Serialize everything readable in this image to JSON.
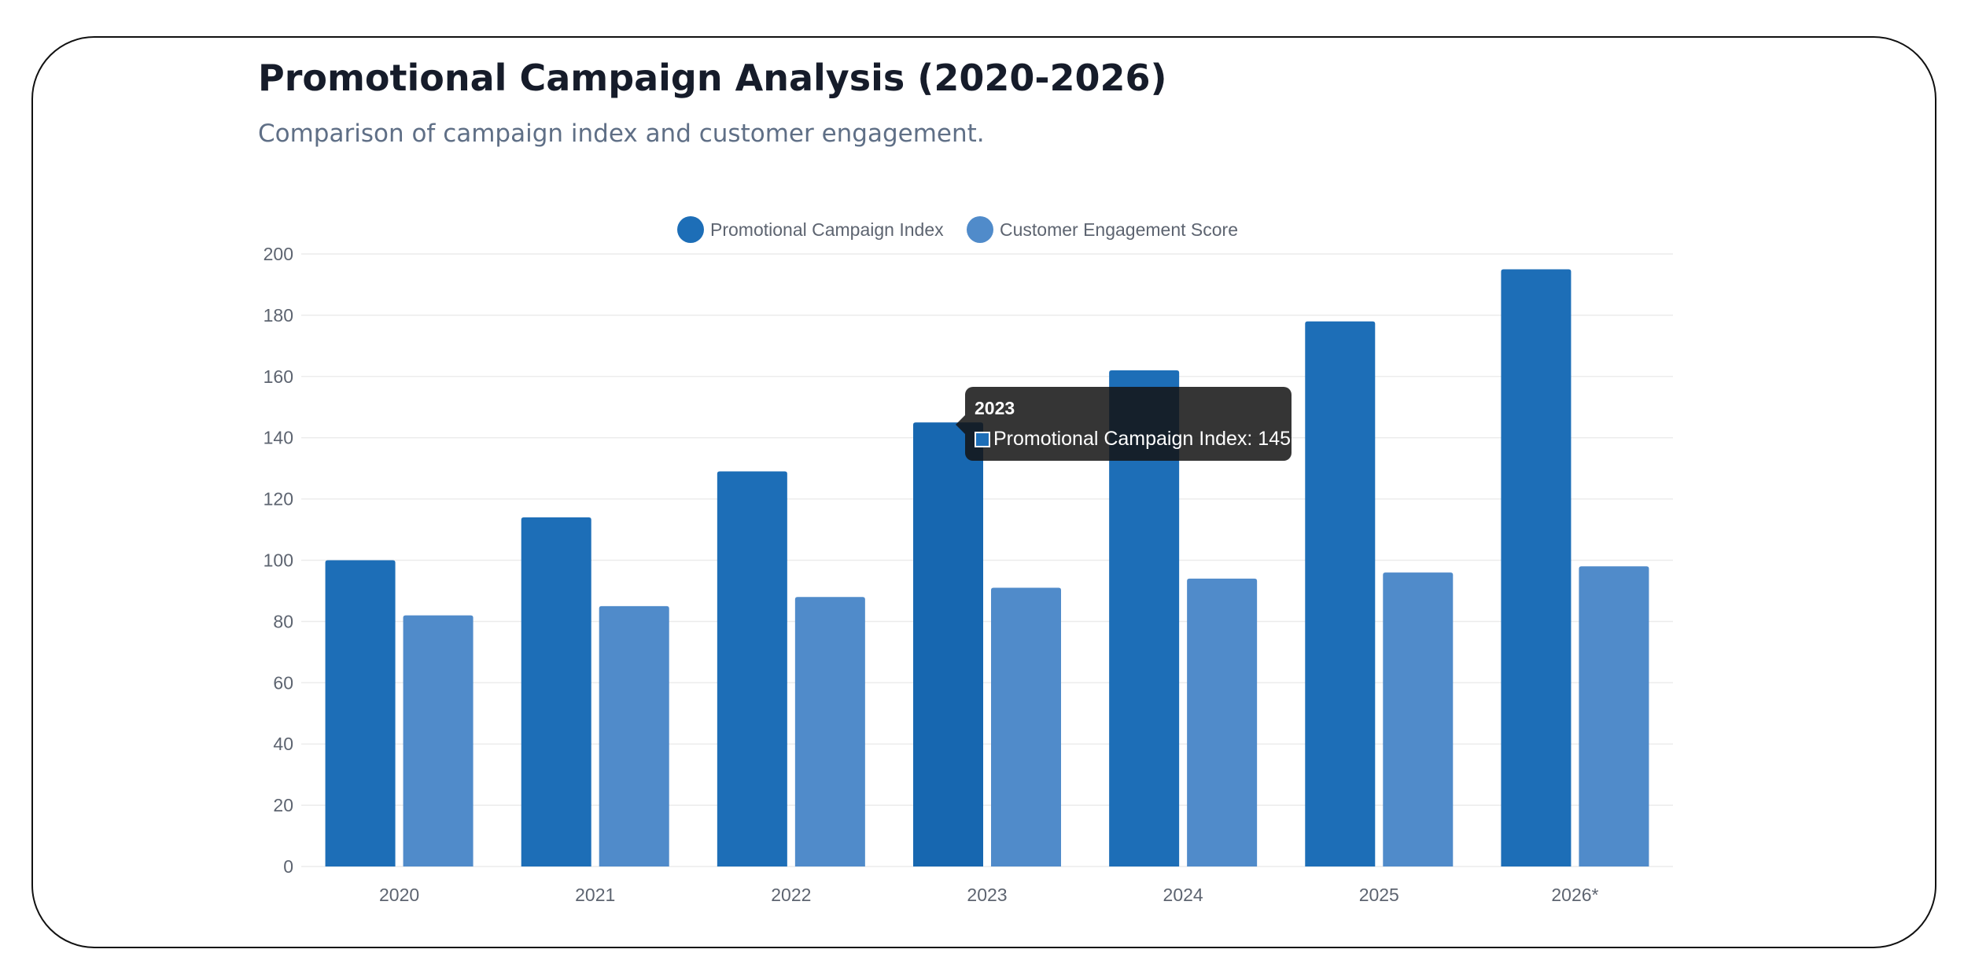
{
  "header": {
    "title": "Promotional Campaign Analysis (2020-2026)",
    "subtitle": "Comparison of campaign index and customer engagement."
  },
  "chart_data": {
    "type": "bar",
    "categories": [
      "2020",
      "2021",
      "2022",
      "2023",
      "2024",
      "2025",
      "2026*"
    ],
    "series": [
      {
        "name": "Promotional Campaign Index",
        "color": "#1d6eb7",
        "values": [
          100,
          114,
          129,
          145,
          162,
          178,
          195
        ]
      },
      {
        "name": "Customer Engagement Score",
        "color": "#508bca",
        "values": [
          82,
          85,
          88,
          91,
          94,
          96,
          98
        ]
      }
    ],
    "ylim": [
      0,
      200
    ],
    "yticks": [
      0,
      20,
      40,
      60,
      80,
      100,
      120,
      140,
      160,
      180,
      200
    ],
    "grid": true,
    "legend_position": "top-center",
    "highlight": {
      "category": "2023",
      "series": "Promotional Campaign Index",
      "color": "#1767b0"
    }
  },
  "tooltip": {
    "title": "2023",
    "label": "Promotional Campaign Index: 145",
    "swatch_color": "#1d6eb7"
  }
}
